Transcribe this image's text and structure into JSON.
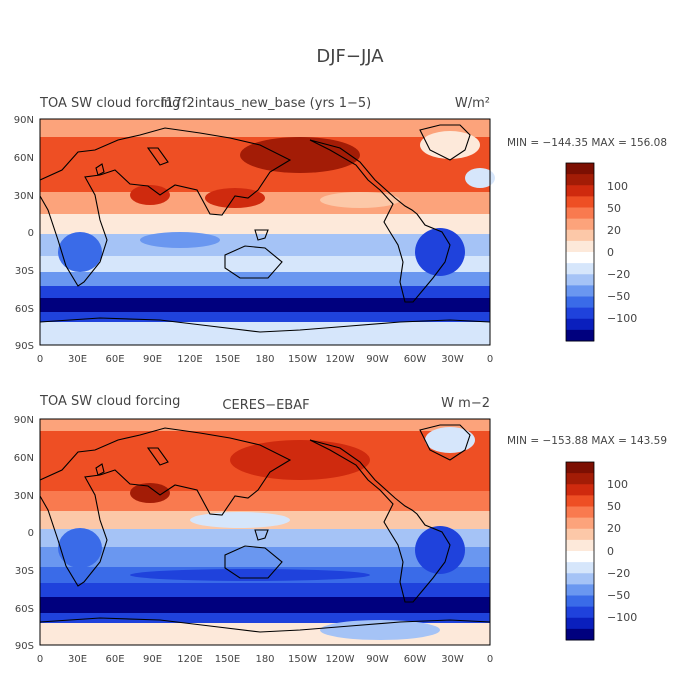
{
  "main_title": "DJF−JJA",
  "colors": {
    "palette": [
      "#00007e",
      "#0a1fbd",
      "#1f42dc",
      "#3a6be8",
      "#6a97f0",
      "#a5c3f6",
      "#d6e6fb",
      "#ffffff",
      "#fde9da",
      "#fcc8a8",
      "#fca37b",
      "#f97a4f",
      "#ee4f24",
      "#cf2a0e",
      "#a31c06",
      "#7c0f02"
    ],
    "ocean_warm": "#f06a38",
    "coast": "#000000"
  },
  "colorbar_labels": [
    "100",
    "50",
    "20",
    "0",
    "−20",
    "−50",
    "−100"
  ],
  "lat_labels": [
    "90N",
    "60N",
    "30N",
    "0",
    "30S",
    "60S",
    "90S"
  ],
  "lon_labels": [
    "0",
    "30E",
    "60E",
    "90E",
    "120E",
    "150E",
    "180",
    "150W",
    "120W",
    "90W",
    "60W",
    "30W",
    "0"
  ],
  "panels": [
    {
      "title_left": "TOA SW cloud forcing",
      "title_center": "f17f2intaus_new_base (yrs 1−5)",
      "units": "W/m²",
      "stats": "MIN = −144.35 MAX = 156.08"
    },
    {
      "title_left": "TOA SW cloud forcing",
      "title_center": "CERES−EBAF",
      "units": "W m−2",
      "stats": "MIN = −153.88 MAX = 143.59"
    }
  ]
}
